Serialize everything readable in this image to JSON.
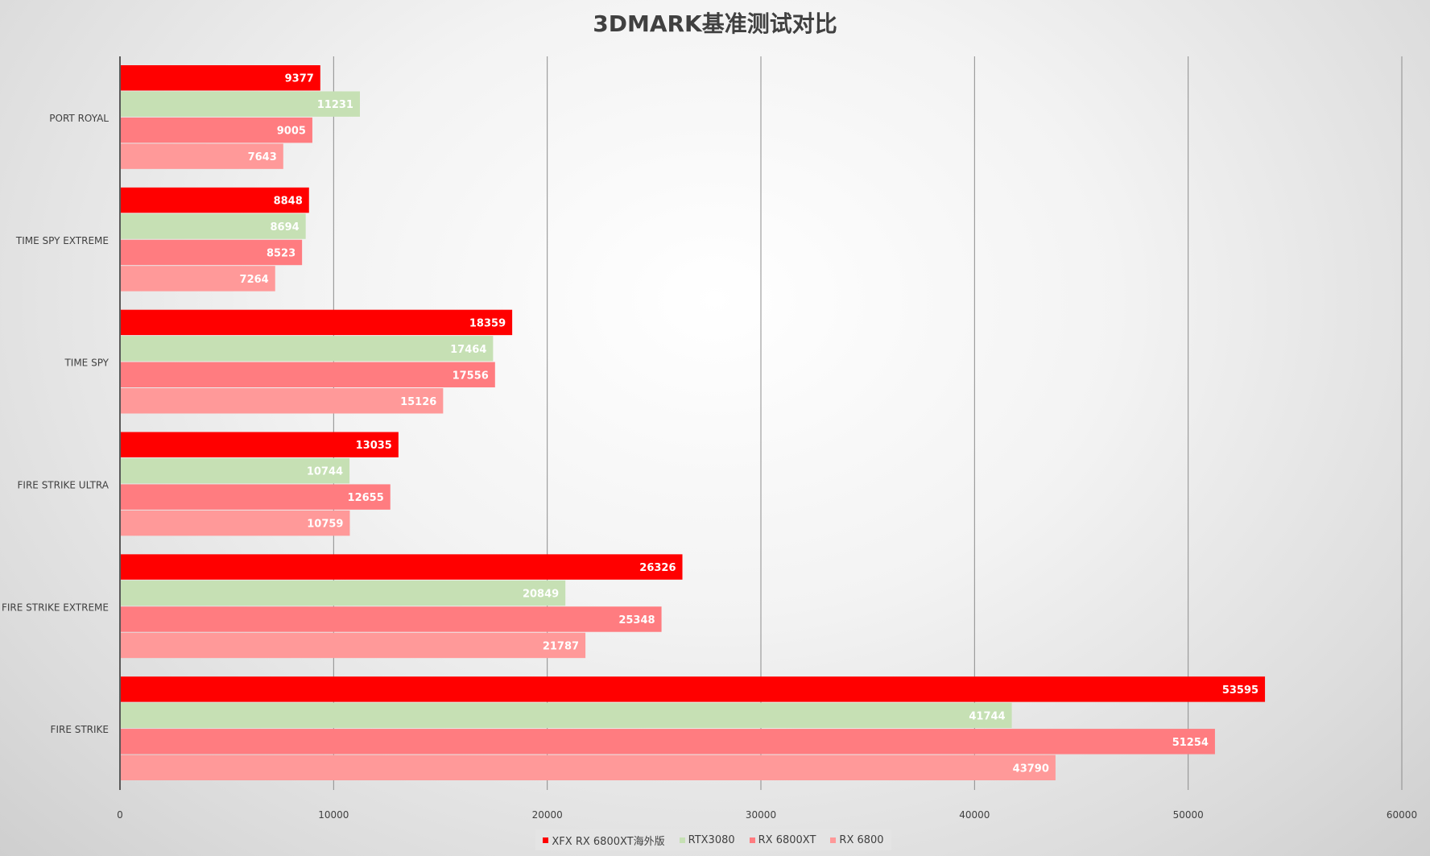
{
  "chart_data": {
    "type": "bar",
    "orientation": "horizontal",
    "title": "3DMARK基准测试对比",
    "categories": [
      "PORT ROYAL",
      "TIME SPY EXTREME",
      "TIME SPY",
      "FIRE STRIKE ULTRA",
      "FIRE STRIKE EXTREME",
      "FIRE STRIKE"
    ],
    "series": [
      {
        "name": "XFX RX 6800XT海外版",
        "color": "#ff0000",
        "values": [
          9377,
          8848,
          18359,
          13035,
          26326,
          53595
        ]
      },
      {
        "name": "RTX3080",
        "color": "#c6e0b4",
        "values": [
          11231,
          8694,
          17464,
          10744,
          20849,
          41744
        ]
      },
      {
        "name": "RX 6800XT",
        "color": "#ff7c80",
        "values": [
          9005,
          8523,
          17556,
          12655,
          25348,
          51254
        ]
      },
      {
        "name": "RX 6800",
        "color": "#ff9999",
        "values": [
          7643,
          7264,
          15126,
          10759,
          21787,
          43790
        ]
      }
    ],
    "xlim": [
      0,
      60000
    ],
    "ticks": [
      0,
      10000,
      20000,
      30000,
      40000,
      50000,
      60000
    ],
    "grid": true,
    "legend": "bottom",
    "data_labels": true
  }
}
